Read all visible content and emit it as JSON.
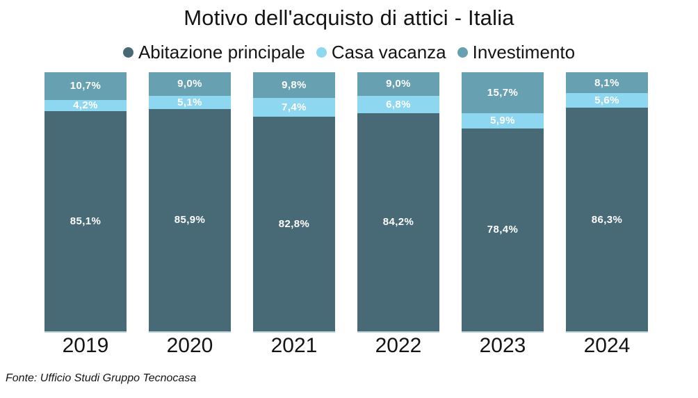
{
  "title": "Motivo dell'acquisto di attici - Italia",
  "footer": "Fonte: Ufficio Studi Gruppo Tecnocasa",
  "colors": {
    "abitazione_principale": "#486a76",
    "casa_vacanza": "#8ed7f0",
    "investimento": "#67a1b1",
    "baseline": "#b9d3da",
    "value_label": "#ffffff",
    "text": "#141414"
  },
  "chart_data": {
    "type": "bar",
    "stacked": true,
    "stack_unit": "percent",
    "title": "Motivo dell'acquisto di attici - Italia",
    "xlabel": "",
    "ylabel": "",
    "ylim": [
      0,
      100
    ],
    "grid": false,
    "legend_position": "top",
    "categories": [
      "2019",
      "2020",
      "2021",
      "2022",
      "2023",
      "2024"
    ],
    "series": [
      {
        "name": "Abitazione principale",
        "color": "#486a76",
        "values": [
          85.1,
          85.9,
          82.8,
          84.2,
          78.4,
          86.3
        ],
        "labels": [
          "85,1%",
          "85,9%",
          "82,8%",
          "84,2%",
          "78,4%",
          "86,3%"
        ]
      },
      {
        "name": "Casa vacanza",
        "color": "#8ed7f0",
        "values": [
          4.2,
          5.1,
          7.4,
          6.8,
          5.9,
          5.6
        ],
        "labels": [
          "4,2%",
          "5,1%",
          "7,4%",
          "6,8%",
          "5,9%",
          "5,6%"
        ]
      },
      {
        "name": "Investimento",
        "color": "#67a1b1",
        "values": [
          10.7,
          9.0,
          9.8,
          9.0,
          15.7,
          8.1
        ],
        "labels": [
          "10,7%",
          "9,0%",
          "9,8%",
          "9,0%",
          "15,7%",
          "8,1%"
        ]
      }
    ]
  }
}
